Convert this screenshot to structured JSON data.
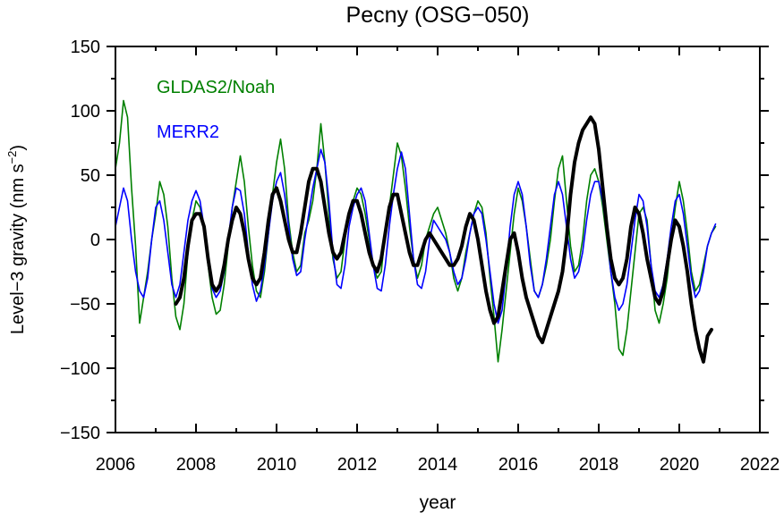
{
  "chart_data": {
    "type": "line",
    "title": "Pecny (OSG−050)",
    "xlabel": "year",
    "ylabel": "Level−3 gravity (nm s",
    "ylabel_sup": "−2",
    "ylabel_close": ")",
    "xlim": [
      2006,
      2022
    ],
    "ylim": [
      -150,
      150
    ],
    "x_ticks": [
      2006,
      2008,
      2010,
      2012,
      2014,
      2016,
      2018,
      2020,
      2022
    ],
    "x_tick_labels": [
      "2006",
      "2008",
      "2010",
      "2012",
      "2014",
      "2016",
      "2018",
      "2020",
      "2022"
    ],
    "y_ticks": [
      -150,
      -100,
      -50,
      0,
      50,
      100,
      150
    ],
    "y_tick_labels": [
      "−150",
      "−100",
      "−50",
      "0",
      "50",
      "100",
      "150"
    ],
    "grid": false,
    "legend_position": "top-left",
    "series": [
      {
        "name": "GLDAS2/Noah",
        "color": "#008000",
        "x": [
          2006.0,
          2006.1,
          2006.2,
          2006.3,
          2006.4,
          2006.5,
          2006.6,
          2006.7,
          2006.8,
          2006.9,
          2007.0,
          2007.1,
          2007.2,
          2007.3,
          2007.4,
          2007.5,
          2007.6,
          2007.7,
          2007.8,
          2007.9,
          2008.0,
          2008.1,
          2008.2,
          2008.3,
          2008.4,
          2008.5,
          2008.6,
          2008.7,
          2008.8,
          2008.9,
          2009.0,
          2009.1,
          2009.2,
          2009.3,
          2009.4,
          2009.5,
          2009.6,
          2009.7,
          2009.8,
          2009.9,
          2010.0,
          2010.1,
          2010.2,
          2010.3,
          2010.4,
          2010.5,
          2010.6,
          2010.7,
          2010.8,
          2010.9,
          2011.0,
          2011.1,
          2011.2,
          2011.3,
          2011.4,
          2011.5,
          2011.6,
          2011.7,
          2011.8,
          2011.9,
          2012.0,
          2012.1,
          2012.2,
          2012.3,
          2012.4,
          2012.5,
          2012.6,
          2012.7,
          2012.8,
          2012.9,
          2013.0,
          2013.1,
          2013.2,
          2013.3,
          2013.4,
          2013.5,
          2013.6,
          2013.7,
          2013.8,
          2013.9,
          2014.0,
          2014.1,
          2014.2,
          2014.3,
          2014.4,
          2014.5,
          2014.6,
          2014.7,
          2014.8,
          2014.9,
          2015.0,
          2015.1,
          2015.2,
          2015.3,
          2015.4,
          2015.5,
          2015.6,
          2015.7,
          2015.8,
          2015.9,
          2016.0,
          2016.1,
          2016.2,
          2016.3,
          2016.4,
          2016.5,
          2016.6,
          2016.7,
          2016.8,
          2016.9,
          2017.0,
          2017.1,
          2017.2,
          2017.3,
          2017.4,
          2017.5,
          2017.6,
          2017.7,
          2017.8,
          2017.9,
          2018.0,
          2018.1,
          2018.2,
          2018.3,
          2018.4,
          2018.5,
          2018.6,
          2018.7,
          2018.8,
          2018.9,
          2019.0,
          2019.1,
          2019.2,
          2019.3,
          2019.4,
          2019.5,
          2019.6,
          2019.7,
          2019.8,
          2019.9,
          2020.0,
          2020.1,
          2020.2,
          2020.3,
          2020.4,
          2020.5,
          2020.6,
          2020.7,
          2020.8,
          2020.9
        ],
        "y": [
          55,
          75,
          108,
          95,
          40,
          -5,
          -65,
          -45,
          -25,
          0,
          20,
          45,
          35,
          10,
          -30,
          -60,
          -70,
          -50,
          -10,
          15,
          30,
          25,
          10,
          -20,
          -45,
          -58,
          -55,
          -35,
          -5,
          25,
          45,
          65,
          45,
          10,
          -20,
          -40,
          -45,
          -25,
          5,
          35,
          60,
          78,
          55,
          15,
          -10,
          -25,
          -20,
          5,
          15,
          30,
          55,
          90,
          60,
          20,
          -15,
          -30,
          -25,
          0,
          20,
          30,
          40,
          35,
          20,
          0,
          -20,
          -30,
          -25,
          5,
          25,
          50,
          75,
          65,
          40,
          10,
          -15,
          -30,
          -20,
          0,
          10,
          20,
          25,
          15,
          5,
          -10,
          -30,
          -40,
          -30,
          -10,
          5,
          20,
          30,
          25,
          5,
          -30,
          -60,
          -95,
          -70,
          -40,
          -10,
          20,
          40,
          30,
          10,
          -15,
          -40,
          -45,
          -35,
          -20,
          0,
          30,
          55,
          65,
          30,
          -5,
          -25,
          -20,
          0,
          30,
          50,
          55,
          45,
          25,
          0,
          -25,
          -50,
          -85,
          -90,
          -70,
          -40,
          -10,
          20,
          25,
          15,
          -20,
          -55,
          -65,
          -50,
          -30,
          0,
          25,
          45,
          30,
          5,
          -25,
          -40,
          -35,
          -20,
          -5,
          5,
          10
        ]
      },
      {
        "name": "MERR2",
        "color": "#0000ff",
        "x": [
          2006.0,
          2006.1,
          2006.2,
          2006.3,
          2006.4,
          2006.5,
          2006.6,
          2006.7,
          2006.8,
          2006.9,
          2007.0,
          2007.1,
          2007.2,
          2007.3,
          2007.4,
          2007.5,
          2007.6,
          2007.7,
          2007.8,
          2007.9,
          2008.0,
          2008.1,
          2008.2,
          2008.3,
          2008.4,
          2008.5,
          2008.6,
          2008.7,
          2008.8,
          2008.9,
          2009.0,
          2009.1,
          2009.2,
          2009.3,
          2009.4,
          2009.5,
          2009.6,
          2009.7,
          2009.8,
          2009.9,
          2010.0,
          2010.1,
          2010.2,
          2010.3,
          2010.4,
          2010.5,
          2010.6,
          2010.7,
          2010.8,
          2010.9,
          2011.0,
          2011.1,
          2011.2,
          2011.3,
          2011.4,
          2011.5,
          2011.6,
          2011.7,
          2011.8,
          2011.9,
          2012.0,
          2012.1,
          2012.2,
          2012.3,
          2012.4,
          2012.5,
          2012.6,
          2012.7,
          2012.8,
          2012.9,
          2013.0,
          2013.1,
          2013.2,
          2013.3,
          2013.4,
          2013.5,
          2013.6,
          2013.7,
          2013.8,
          2013.9,
          2014.0,
          2014.1,
          2014.2,
          2014.3,
          2014.4,
          2014.5,
          2014.6,
          2014.7,
          2014.8,
          2014.9,
          2015.0,
          2015.1,
          2015.2,
          2015.3,
          2015.4,
          2015.5,
          2015.6,
          2015.7,
          2015.8,
          2015.9,
          2016.0,
          2016.1,
          2016.2,
          2016.3,
          2016.4,
          2016.5,
          2016.6,
          2016.7,
          2016.8,
          2016.9,
          2017.0,
          2017.1,
          2017.2,
          2017.3,
          2017.4,
          2017.5,
          2017.6,
          2017.7,
          2017.8,
          2017.9,
          2018.0,
          2018.1,
          2018.2,
          2018.3,
          2018.4,
          2018.5,
          2018.6,
          2018.7,
          2018.8,
          2018.9,
          2019.0,
          2019.1,
          2019.2,
          2019.3,
          2019.4,
          2019.5,
          2019.6,
          2019.7,
          2019.8,
          2019.9,
          2020.0,
          2020.1,
          2020.2,
          2020.3,
          2020.4,
          2020.5,
          2020.6,
          2020.7,
          2020.8,
          2020.9
        ],
        "y": [
          10,
          25,
          40,
          30,
          0,
          -25,
          -40,
          -45,
          -30,
          0,
          25,
          30,
          15,
          -10,
          -35,
          -45,
          -35,
          -10,
          15,
          30,
          38,
          30,
          10,
          -15,
          -38,
          -45,
          -40,
          -25,
          0,
          25,
          40,
          38,
          20,
          -10,
          -35,
          -48,
          -40,
          -20,
          5,
          30,
          45,
          52,
          35,
          10,
          -15,
          -28,
          -25,
          0,
          20,
          40,
          55,
          70,
          60,
          30,
          -10,
          -35,
          -38,
          -20,
          10,
          25,
          35,
          40,
          30,
          5,
          -20,
          -38,
          -40,
          -20,
          10,
          35,
          55,
          68,
          55,
          20,
          -15,
          -35,
          -38,
          -25,
          0,
          15,
          10,
          5,
          0,
          -10,
          -25,
          -35,
          -30,
          -15,
          5,
          20,
          25,
          20,
          0,
          -25,
          -50,
          -65,
          -55,
          -25,
          10,
          35,
          45,
          35,
          10,
          -20,
          -40,
          -45,
          -35,
          -15,
          10,
          35,
          45,
          35,
          10,
          -15,
          -30,
          -25,
          -10,
          15,
          35,
          45,
          45,
          30,
          5,
          -25,
          -45,
          -55,
          -50,
          -35,
          -10,
          15,
          35,
          30,
          10,
          -20,
          -40,
          -45,
          -35,
          -15,
          10,
          30,
          35,
          20,
          -5,
          -30,
          -45,
          -40,
          -25,
          -5,
          5,
          12
        ]
      },
      {
        "name": "",
        "color": "#000000",
        "x": [
          2007.5,
          2007.6,
          2007.7,
          2007.8,
          2007.9,
          2008.0,
          2008.1,
          2008.2,
          2008.3,
          2008.4,
          2008.5,
          2008.6,
          2008.7,
          2008.8,
          2008.9,
          2009.0,
          2009.1,
          2009.2,
          2009.3,
          2009.4,
          2009.5,
          2009.6,
          2009.7,
          2009.8,
          2009.9,
          2010.0,
          2010.1,
          2010.2,
          2010.3,
          2010.4,
          2010.5,
          2010.6,
          2010.7,
          2010.8,
          2010.9,
          2011.0,
          2011.1,
          2011.2,
          2011.3,
          2011.4,
          2011.5,
          2011.6,
          2011.7,
          2011.8,
          2011.9,
          2012.0,
          2012.1,
          2012.2,
          2012.3,
          2012.4,
          2012.5,
          2012.6,
          2012.7,
          2012.8,
          2012.9,
          2013.0,
          2013.1,
          2013.2,
          2013.3,
          2013.4,
          2013.5,
          2013.6,
          2013.7,
          2013.8,
          2013.9,
          2014.0,
          2014.1,
          2014.2,
          2014.3,
          2014.4,
          2014.5,
          2014.6,
          2014.7,
          2014.8,
          2014.9,
          2015.0,
          2015.1,
          2015.2,
          2015.3,
          2015.4,
          2015.5,
          2015.6,
          2015.7,
          2015.8,
          2015.9,
          2016.0,
          2016.1,
          2016.2,
          2016.3,
          2016.4,
          2016.5,
          2016.6,
          2016.7,
          2016.8,
          2016.9,
          2017.0,
          2017.1,
          2017.2,
          2017.3,
          2017.4,
          2017.5,
          2017.6,
          2017.7,
          2017.8,
          2017.9,
          2018.0,
          2018.1,
          2018.2,
          2018.3,
          2018.4,
          2018.5,
          2018.6,
          2018.7,
          2018.8,
          2018.9,
          2019.0,
          2019.1,
          2019.2,
          2019.3,
          2019.4,
          2019.5,
          2019.6,
          2019.7,
          2019.8,
          2019.9,
          2020.0,
          2020.1,
          2020.2,
          2020.3,
          2020.4,
          2020.5,
          2020.6,
          2020.7,
          2020.8
        ],
        "y": [
          -50,
          -45,
          -30,
          -5,
          15,
          20,
          20,
          10,
          -15,
          -35,
          -40,
          -35,
          -20,
          0,
          15,
          25,
          20,
          5,
          -15,
          -30,
          -35,
          -30,
          -10,
          15,
          35,
          40,
          30,
          15,
          0,
          -10,
          -10,
          5,
          25,
          45,
          55,
          55,
          45,
          25,
          5,
          -10,
          -15,
          -10,
          5,
          20,
          30,
          30,
          20,
          5,
          -10,
          -20,
          -25,
          -15,
          5,
          25,
          35,
          35,
          20,
          5,
          -10,
          -20,
          -20,
          -10,
          0,
          5,
          0,
          -5,
          -10,
          -15,
          -20,
          -20,
          -15,
          -5,
          10,
          20,
          15,
          0,
          -20,
          -40,
          -55,
          -65,
          -60,
          -40,
          -20,
          0,
          5,
          -10,
          -30,
          -45,
          -55,
          -65,
          -75,
          -80,
          -70,
          -60,
          -50,
          -40,
          -25,
          0,
          35,
          60,
          75,
          85,
          90,
          95,
          90,
          70,
          40,
          10,
          -15,
          -30,
          -35,
          -30,
          -15,
          10,
          25,
          20,
          5,
          -15,
          -30,
          -45,
          -50,
          -40,
          -20,
          0,
          15,
          10,
          -5,
          -25,
          -50,
          -70,
          -85,
          -95,
          -75,
          -70
        ]
      }
    ]
  }
}
